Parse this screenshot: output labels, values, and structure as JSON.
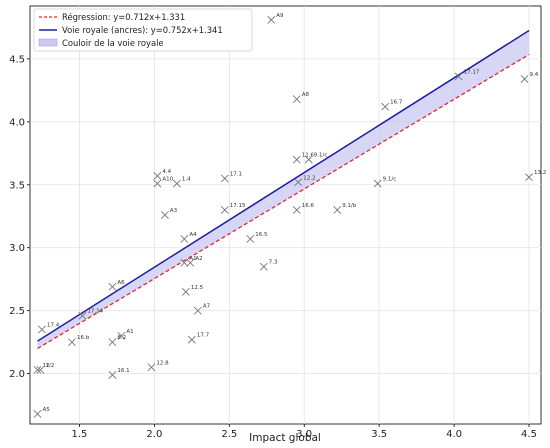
{
  "chart_data": {
    "type": "scatter",
    "xlabel": "Impact global",
    "ylabel": "",
    "xlim": [
      1.17,
      4.58
    ],
    "ylim": [
      1.6,
      4.92
    ],
    "xticks": [
      1.5,
      2.0,
      2.5,
      3.0,
      3.5,
      4.0,
      4.5
    ],
    "yticks": [
      2.0,
      2.5,
      3.0,
      3.5,
      4.0,
      4.5
    ],
    "xtick_labels": [
      "1.5",
      "2.0",
      "2.5",
      "3.0",
      "3.5",
      "4.0",
      "4.5"
    ],
    "ytick_labels": [
      "2.0",
      "2.5",
      "3.0",
      "3.5",
      "4.0",
      "4.5"
    ],
    "grid": true,
    "legend_position": "top-left",
    "regression": {
      "label": "Régression: y=0.712x+1.331",
      "slope": 0.712,
      "intercept": 1.331,
      "color": "#e8262c",
      "style": "dashed"
    },
    "royal_line": {
      "label": "Voie royale (ancres): y=0.752x+1.341",
      "slope": 0.752,
      "intercept": 1.341,
      "color": "#1f1fa8"
    },
    "corridor": {
      "label": "Couloir de la voie royale",
      "color": "#c9c9f2"
    },
    "x_range": [
      1.22,
      4.5
    ],
    "points": [
      {
        "x": 2.78,
        "y": 4.81,
        "label": "A9"
      },
      {
        "x": 4.47,
        "y": 4.34,
        "label": "9.4"
      },
      {
        "x": 4.03,
        "y": 4.36,
        "label": "17.17"
      },
      {
        "x": 2.95,
        "y": 4.18,
        "label": "A8"
      },
      {
        "x": 3.54,
        "y": 4.12,
        "label": "16.7"
      },
      {
        "x": 2.95,
        "y": 3.7,
        "label": "11.6"
      },
      {
        "x": 3.03,
        "y": 3.7,
        "label": "9.1/c"
      },
      {
        "x": 2.02,
        "y": 3.57,
        "label": "4.4"
      },
      {
        "x": 2.02,
        "y": 3.51,
        "label": "A10"
      },
      {
        "x": 2.15,
        "y": 3.51,
        "label": "1.4"
      },
      {
        "x": 2.47,
        "y": 3.55,
        "label": "17.1"
      },
      {
        "x": 2.96,
        "y": 3.52,
        "label": "12.2"
      },
      {
        "x": 3.49,
        "y": 3.51,
        "label": "9.1/c"
      },
      {
        "x": 4.5,
        "y": 3.56,
        "label": "13.2"
      },
      {
        "x": 2.07,
        "y": 3.26,
        "label": "A3"
      },
      {
        "x": 2.47,
        "y": 3.3,
        "label": "17.15"
      },
      {
        "x": 2.95,
        "y": 3.3,
        "label": "16.6"
      },
      {
        "x": 3.22,
        "y": 3.3,
        "label": "9.1/b"
      },
      {
        "x": 2.2,
        "y": 3.07,
        "label": "A4"
      },
      {
        "x": 2.64,
        "y": 3.07,
        "label": "16.5"
      },
      {
        "x": 2.2,
        "y": 2.88,
        "label": "A1"
      },
      {
        "x": 2.24,
        "y": 2.88,
        "label": "A2"
      },
      {
        "x": 2.73,
        "y": 2.85,
        "label": "7.3"
      },
      {
        "x": 1.72,
        "y": 2.69,
        "label": "A6"
      },
      {
        "x": 2.21,
        "y": 2.65,
        "label": "12.5"
      },
      {
        "x": 2.29,
        "y": 2.5,
        "label": "A7"
      },
      {
        "x": 1.52,
        "y": 2.46,
        "label": "17.14"
      },
      {
        "x": 1.25,
        "y": 2.35,
        "label": "17.4"
      },
      {
        "x": 1.78,
        "y": 2.3,
        "label": "A1"
      },
      {
        "x": 1.72,
        "y": 2.25,
        "label": "8.2"
      },
      {
        "x": 1.45,
        "y": 2.25,
        "label": "16.b"
      },
      {
        "x": 2.25,
        "y": 2.27,
        "label": "17.7"
      },
      {
        "x": 1.22,
        "y": 2.03,
        "label": "12"
      },
      {
        "x": 1.24,
        "y": 2.03,
        "label": "1/2"
      },
      {
        "x": 1.72,
        "y": 1.99,
        "label": "16.1"
      },
      {
        "x": 1.98,
        "y": 2.05,
        "label": "12.8"
      },
      {
        "x": 1.22,
        "y": 1.68,
        "label": "A5"
      }
    ]
  }
}
